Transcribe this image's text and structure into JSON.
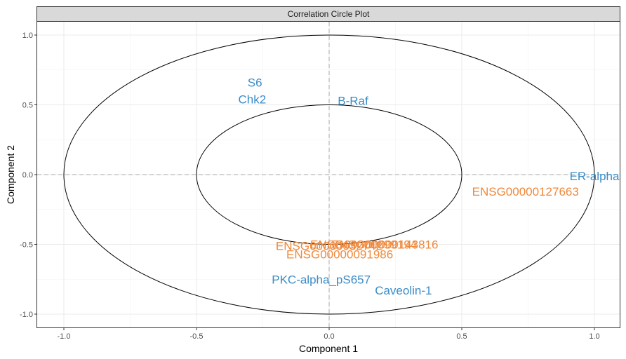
{
  "panel": {
    "strip_title": "Correlation Circle Plot",
    "strip_fill": "#d9d9d9"
  },
  "chart_data": {
    "type": "scatter",
    "title": "Correlation Circle Plot",
    "xlabel": "Component  1",
    "ylabel": "Component  2",
    "xlim": [
      -1.1,
      1.1
    ],
    "ylim": [
      -1.05,
      1.1
    ],
    "x_ticks": [
      -1.0,
      -0.5,
      0.0,
      0.5,
      1.0
    ],
    "x_tick_labels": [
      "-1.0",
      "-0.5",
      "0.0",
      "0.5",
      "1.0"
    ],
    "y_ticks": [
      -1.0,
      -0.5,
      0.0,
      0.5,
      1.0
    ],
    "y_tick_labels": [
      "-1.0",
      "-0.5",
      "0.0",
      "0.5",
      "1.0"
    ],
    "grid": true,
    "circles": [
      1.0,
      0.5
    ],
    "reference_lines": {
      "x": 0,
      "y": 0
    },
    "series": [
      {
        "color": "#3a8cc6",
        "points": [
          {
            "label": "S6",
            "x": -0.28,
            "y": 0.66
          },
          {
            "label": "Chk2",
            "x": -0.29,
            "y": 0.54
          },
          {
            "label": "B-Raf",
            "x": 0.09,
            "y": 0.53
          },
          {
            "label": "ER-alpha",
            "x": 1.0,
            "y": -0.01
          },
          {
            "label": "PKC-alpha_pS657",
            "x": -0.03,
            "y": -0.75
          },
          {
            "label": "Caveolin-1",
            "x": 0.28,
            "y": -0.83
          }
        ]
      },
      {
        "color": "#f0883a",
        "points": [
          {
            "label": "ENSG00000127663",
            "x": 0.74,
            "y": -0.12
          },
          {
            "label": "ENSG00000091986",
            "x": 0.04,
            "y": -0.57
          },
          {
            "label": "ENSG00000032742",
            "x": 0.0,
            "y": -0.51
          },
          {
            "label": "ENSG00000099194",
            "x": 0.13,
            "y": -0.5
          },
          {
            "label": "ENSG00000143816",
            "x": 0.21,
            "y": -0.5
          }
        ]
      }
    ]
  }
}
